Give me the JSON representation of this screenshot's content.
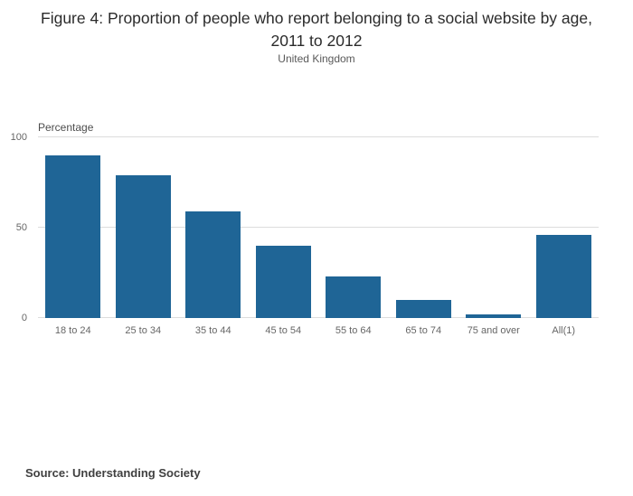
{
  "figure": {
    "title": "Figure 4: Proportion of people who report belonging to a social website by age, 2011 to 2012",
    "subtitle": "United Kingdom",
    "source": "Source: Understanding Society"
  },
  "chart_data": {
    "type": "bar",
    "title": "Figure 4: Proportion of people who report belonging to a social website by age, 2011 to 2012",
    "subtitle": "United Kingdom",
    "categories": [
      "18 to 24",
      "25 to 34",
      "35 to 44",
      "45 to 54",
      "55 to 64",
      "65 to 74",
      "75 and over",
      "All(1)"
    ],
    "values": [
      90,
      79,
      59,
      40,
      23,
      10,
      2,
      46
    ],
    "xlabel": "",
    "ylabel": "Percentage",
    "ylim": [
      0,
      100
    ],
    "yticks": [
      0,
      50,
      100
    ],
    "grid": true,
    "legend": false,
    "bar_color": "#1f6596",
    "source": "Source: Understanding Society"
  }
}
